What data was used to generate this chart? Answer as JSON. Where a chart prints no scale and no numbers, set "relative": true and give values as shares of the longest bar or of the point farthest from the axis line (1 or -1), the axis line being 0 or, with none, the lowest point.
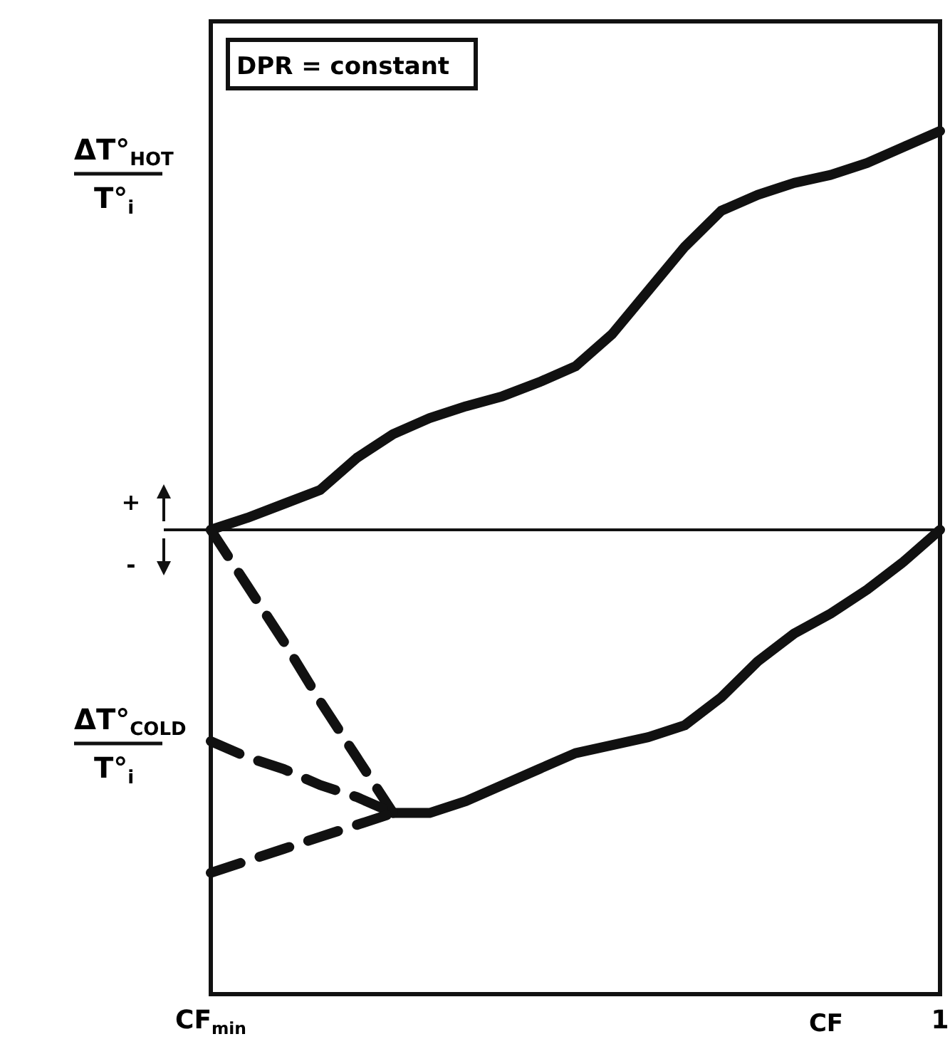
{
  "chart_data": {
    "type": "line",
    "relative": true,
    "xlabel": "CF",
    "ylabel": "ΔT°$_{HOT}$",
    "categories": [
      "CF$_{min}$",
      null,
      null,
      null,
      null,
      null,
      null,
      null,
      null,
      null,
      null,
      null,
      null,
      null,
      null,
      null,
      null,
      null,
      null,
      null,
      "1"
    ],
    "annotations": [
      "DPR = constant",
      "+",
      "-",
      "ΔT°$_{COLD}$",
      "T°$_{i}$",
      "T°$_{i}$"
    ],
    "series": [
      {
        "color": "#111111",
        "line_style": "solid",
        "values": [
          0,
          0.03,
          0.065,
          0.1,
          0.18,
          0.24,
          0.28,
          0.31,
          0.335,
          0.37,
          0.41,
          0.49,
          0.6,
          0.71,
          0.8,
          0.84,
          0.87,
          0.89,
          0.92,
          0.96,
          1
        ]
      },
      {
        "color": "#111111",
        "line_style": "solid",
        "values": [
          null,
          null,
          null,
          null,
          null,
          -0.71,
          -0.71,
          -0.68,
          -0.64,
          -0.6,
          -0.56,
          -0.54,
          -0.52,
          -0.49,
          -0.42,
          -0.33,
          -0.26,
          -0.21,
          -0.15,
          -0.08,
          0
        ]
      },
      {
        "color": "#111111",
        "line_style": "dashed",
        "values": [
          0,
          -0.14,
          -0.28,
          -0.43,
          -0.57,
          -0.71,
          null,
          null,
          null,
          null,
          null,
          null,
          null,
          null,
          null,
          null,
          null,
          null,
          null,
          null,
          null
        ]
      },
      {
        "color": "#111111",
        "line_style": "dashed",
        "values": [
          -0.53,
          -0.57,
          -0.6,
          -0.64,
          -0.67,
          -0.71,
          null,
          null,
          null,
          null,
          null,
          null,
          null,
          null,
          null,
          null,
          null,
          null,
          null,
          null,
          null
        ]
      },
      {
        "color": "#111111",
        "line_style": "dashed",
        "values": [
          -0.86,
          -0.83,
          -0.8,
          -0.77,
          -0.74,
          -0.71,
          null,
          null,
          null,
          null,
          null,
          null,
          null,
          null,
          null,
          null,
          null,
          null,
          null,
          null,
          null
        ]
      }
    ]
  }
}
